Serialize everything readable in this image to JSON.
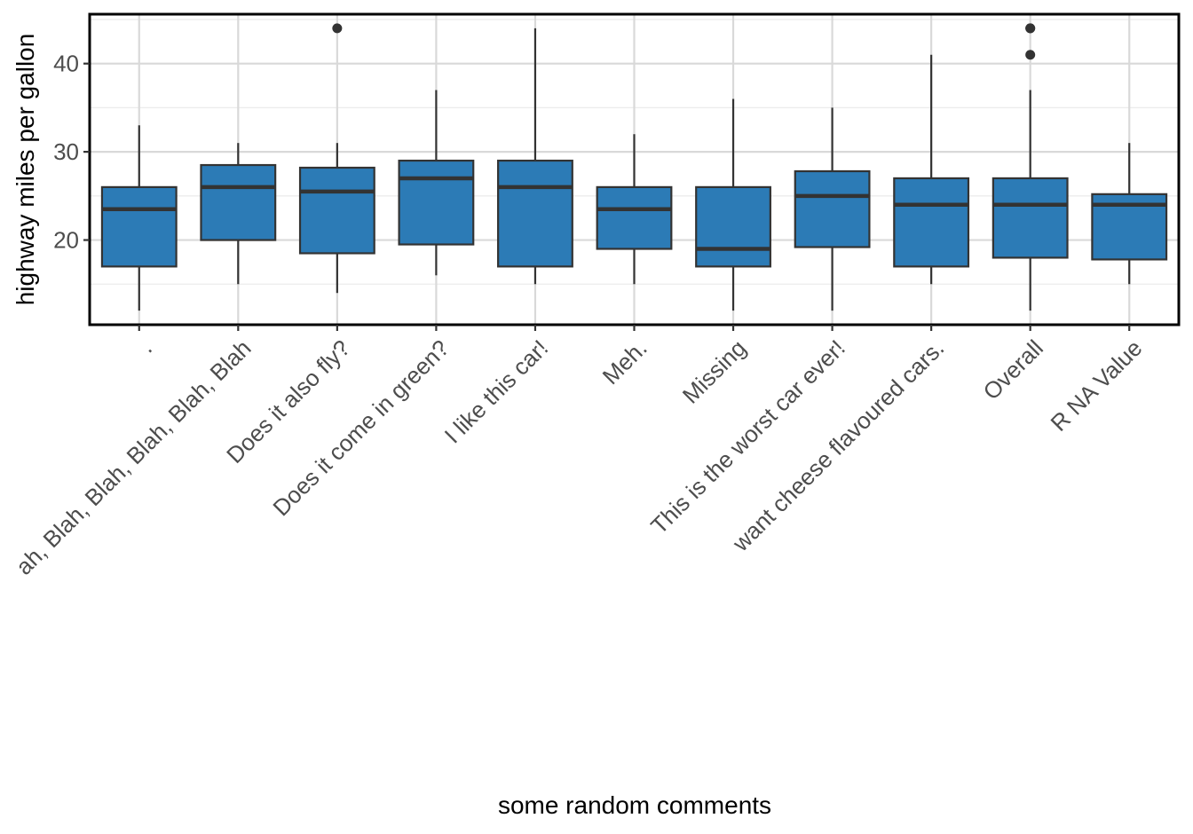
{
  "chart_data": {
    "type": "boxplot",
    "xlabel": "some random comments",
    "ylabel": "highway miles per gallon",
    "ylim": [
      10.4,
      45.6
    ],
    "y_ticks": [
      20,
      30,
      40
    ],
    "grid": true,
    "box_color": "#2c7bb6",
    "categories": [
      ".",
      "Blah, Blah, Blah, Blah, Blah, Blah, Blah",
      "Does it also fly?",
      "Does it come in green?",
      "I like this car!",
      "Meh.",
      "Missing",
      "This is the worst car ever!",
      "want cheese flavoured cars.",
      "Overall",
      "R NA Value"
    ],
    "visible_tick_labels": [
      ".",
      "ah, Blah, Blah, Blah, Blah, Blah",
      "Does it also fly?",
      "Does it come in green?",
      "I like this car!",
      "Meh.",
      "Missing",
      "This is the worst car ever!",
      "want cheese flavoured cars.",
      "Overall",
      "R NA Value"
    ],
    "boxes": [
      {
        "min": 12,
        "q1": 17,
        "median": 23.5,
        "q3": 26,
        "max": 33,
        "outliers": []
      },
      {
        "min": 15,
        "q1": 20,
        "median": 26,
        "q3": 28.5,
        "max": 31,
        "outliers": []
      },
      {
        "min": 14,
        "q1": 18.5,
        "median": 25.5,
        "q3": 28.2,
        "max": 31,
        "outliers": [
          44
        ]
      },
      {
        "min": 16,
        "q1": 19.5,
        "median": 27,
        "q3": 29,
        "max": 37,
        "outliers": []
      },
      {
        "min": 15,
        "q1": 17,
        "median": 26,
        "q3": 29,
        "max": 44,
        "outliers": []
      },
      {
        "min": 15,
        "q1": 19,
        "median": 23.5,
        "q3": 26,
        "max": 32,
        "outliers": []
      },
      {
        "min": 12,
        "q1": 17,
        "median": 19,
        "q3": 26,
        "max": 36,
        "outliers": []
      },
      {
        "min": 12,
        "q1": 19.2,
        "median": 25,
        "q3": 27.8,
        "max": 35,
        "outliers": []
      },
      {
        "min": 15,
        "q1": 17,
        "median": 24,
        "q3": 27,
        "max": 41,
        "outliers": []
      },
      {
        "min": 12,
        "q1": 18,
        "median": 24,
        "q3": 27,
        "max": 37,
        "outliers": [
          41,
          44,
          44
        ]
      },
      {
        "min": 15,
        "q1": 17.8,
        "median": 24,
        "q3": 25.2,
        "max": 31,
        "outliers": []
      }
    ]
  }
}
